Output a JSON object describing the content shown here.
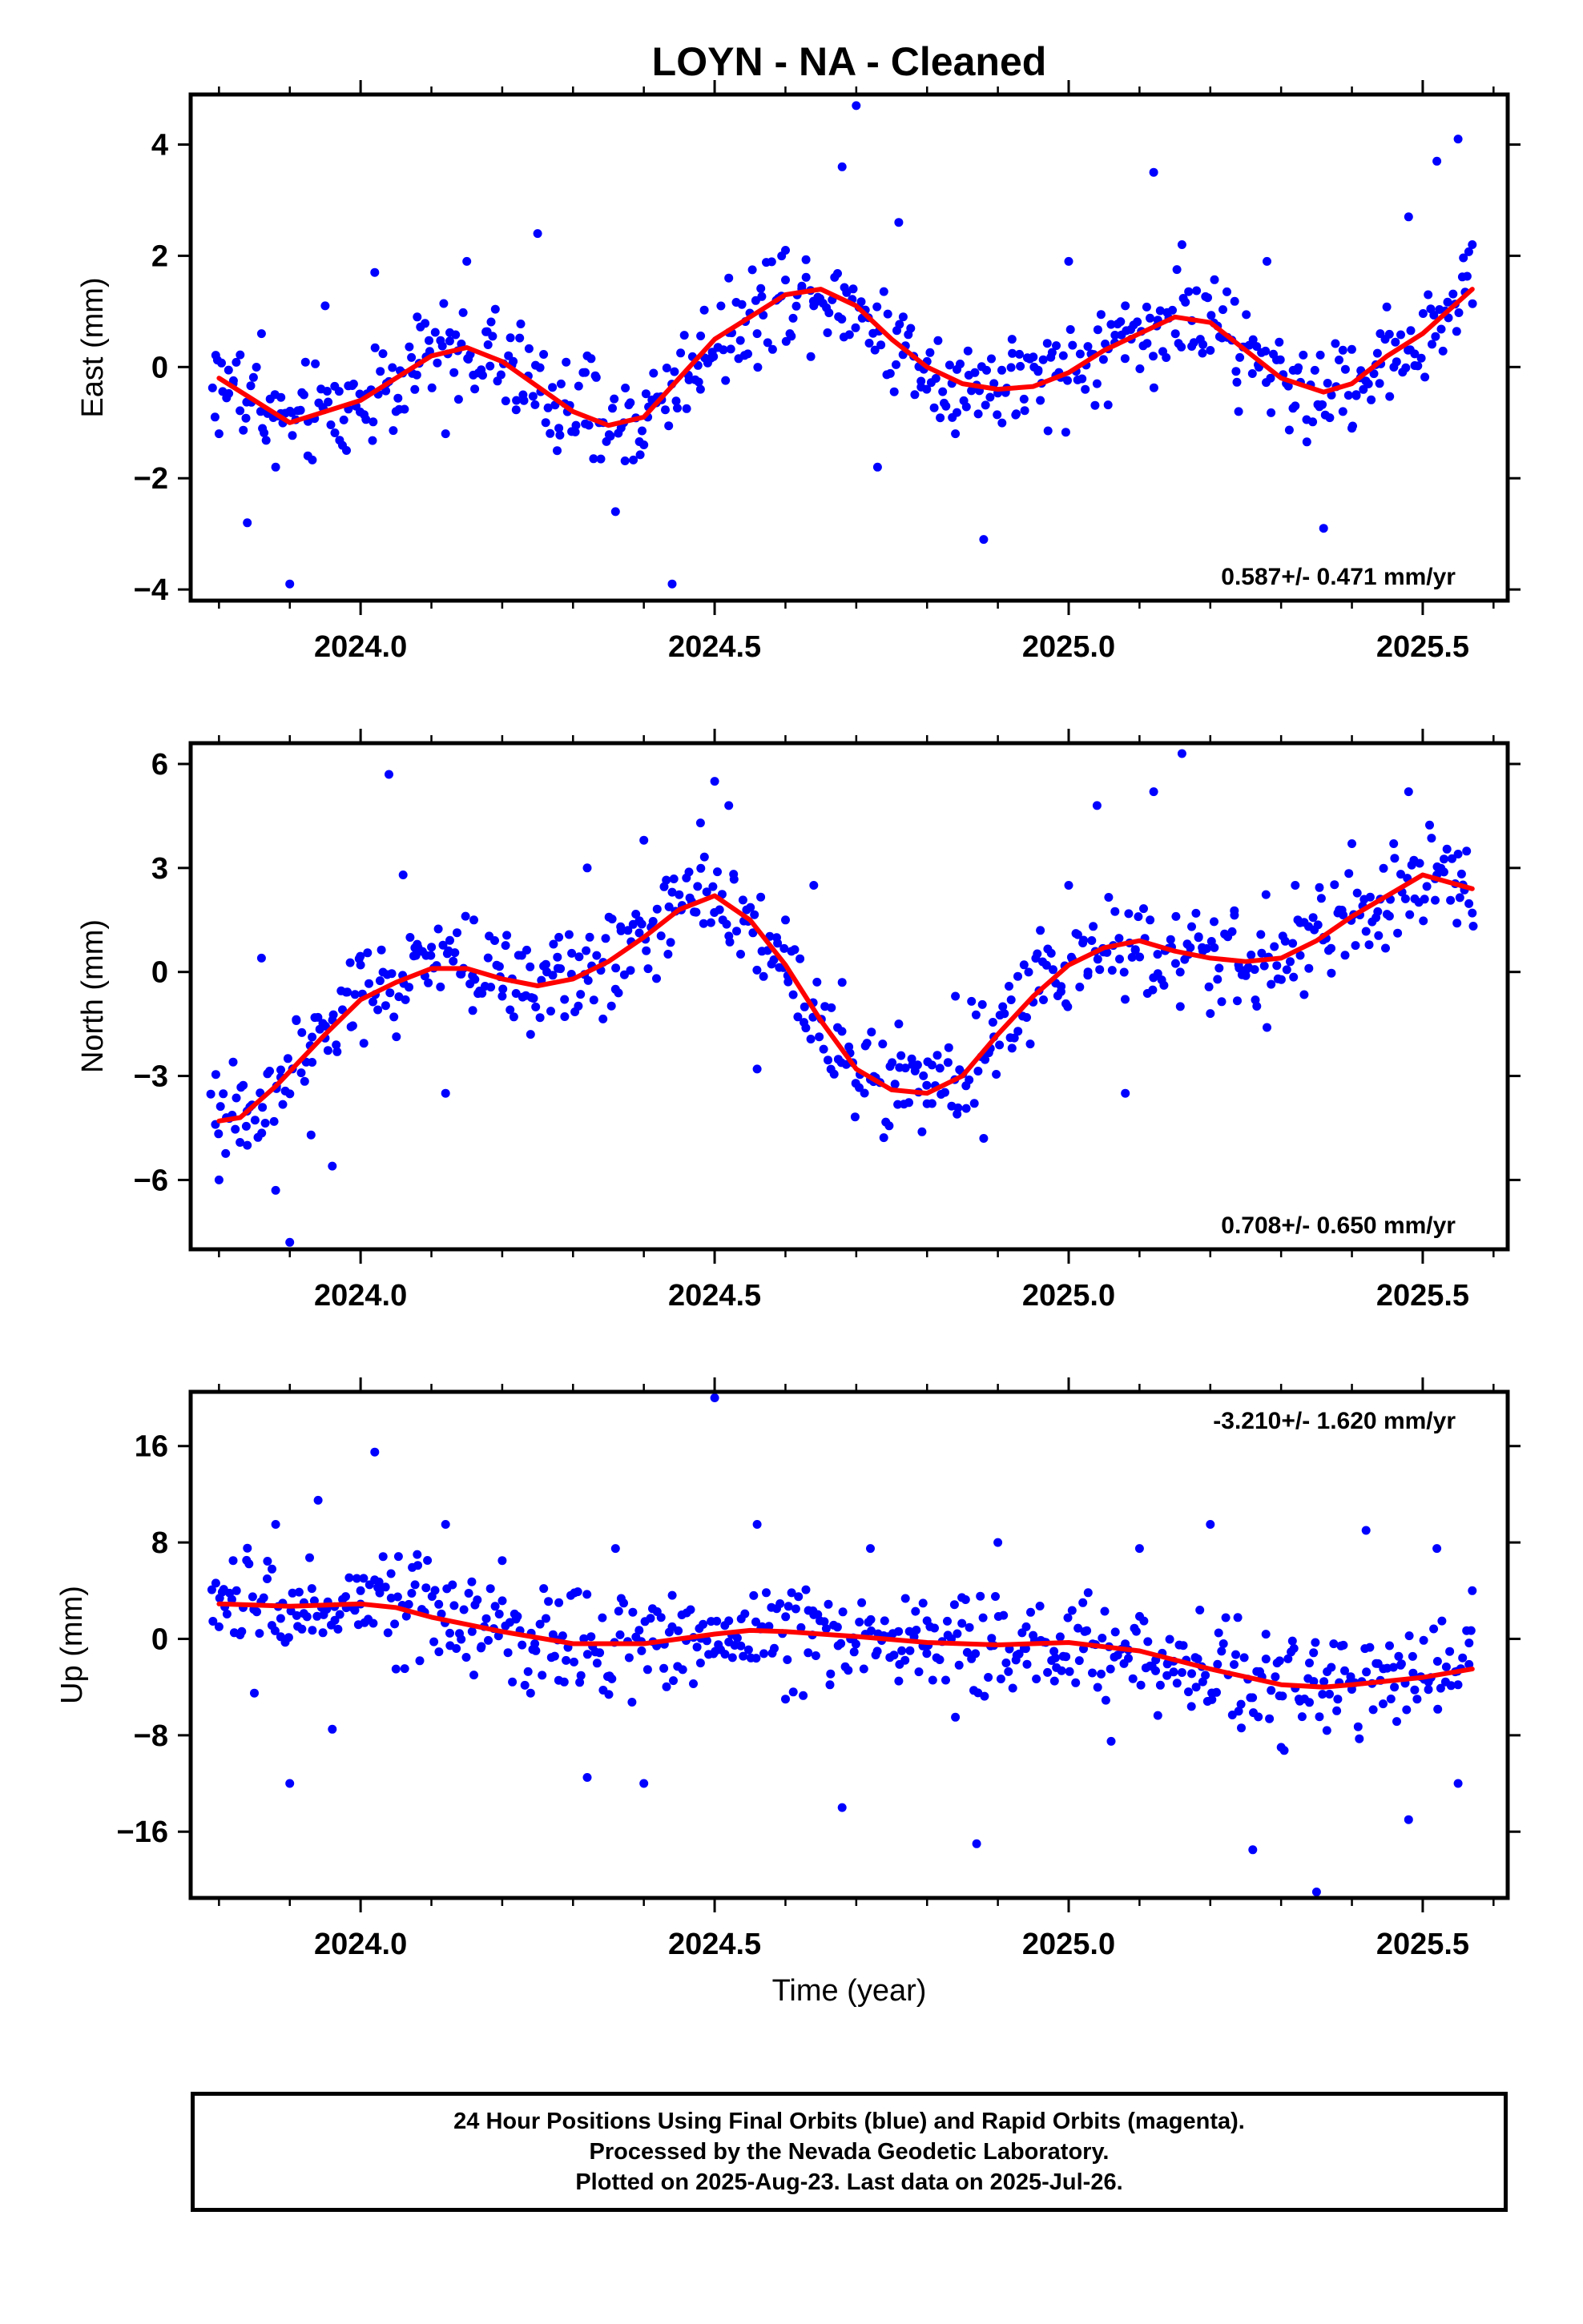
{
  "title": "LOYN  - NA - Cleaned",
  "colors": {
    "points": "#0000ff",
    "fit": "#ff0000",
    "frame": "#000000"
  },
  "caption": {
    "line1": "24 Hour Positions Using Final Orbits (blue) and Rapid Orbits (magenta).",
    "line2": "Processed by the Nevada Geodetic Laboratory.",
    "line3": "Plotted on 2025-Aug-23. Last data on 2025-Jul-26."
  },
  "chart_data": [
    {
      "type": "scatter",
      "ylabel": "East (mm)",
      "xlabel": "",
      "xlim": [
        2023.76,
        2025.62
      ],
      "ylim": [
        -4.2,
        4.9
      ],
      "xticks": [
        2024.0,
        2024.5,
        2025.0,
        2025.5
      ],
      "xtick_labels": [
        "2024.0",
        "2024.5",
        "2025.0",
        "2025.5"
      ],
      "yticks": [
        -4,
        -2,
        0,
        2,
        4
      ],
      "ytick_labels": [
        "−4",
        "−2",
        "0",
        "2",
        "4"
      ],
      "rate_label": "0.587+/- 0.471 mm/yr",
      "rate_position": "bottom-right",
      "series": [
        {
          "kind": "points",
          "color": "#0000ff",
          "x": [
            2023.8,
            2023.82,
            2023.84,
            2023.86,
            2023.88,
            2023.9,
            2023.92,
            2023.95,
            2023.98,
            2024.02,
            2024.05,
            2024.08,
            2024.12,
            2024.15,
            2024.18,
            2024.22,
            2024.25,
            2024.28,
            2024.32,
            2024.36,
            2024.4,
            2024.44,
            2024.48,
            2024.52,
            2024.56,
            2024.6,
            2024.64,
            2024.68,
            2024.7,
            2024.73,
            2024.76,
            2024.8,
            2024.84,
            2024.88,
            2024.92,
            2024.96,
            2025.0,
            2025.04,
            2025.08,
            2025.12,
            2025.16,
            2025.2,
            2025.24,
            2025.28,
            2025.32,
            2025.36,
            2025.4,
            2025.44,
            2025.48,
            2025.52,
            2025.55,
            2025.57
          ],
          "y": [
            -1.2,
            -0.3,
            -2.8,
            0.6,
            -1.8,
            -3.9,
            -0.5,
            1.1,
            -1.5,
            1.7,
            -0.8,
            0.9,
            -1.2,
            1.9,
            0.4,
            -0.6,
            2.4,
            -1.1,
            0.2,
            -2.6,
            -1.4,
            -3.9,
            -0.4,
            1.6,
            0.6,
            2.1,
            1.1,
            3.6,
            4.7,
            -1.8,
            2.6,
            0.1,
            -1.2,
            -3.1,
            0.5,
            -0.6,
            1.9,
            -0.3,
            1.1,
            3.5,
            2.2,
            0.3,
            -0.8,
            1.9,
            -0.7,
            -2.9,
            -1.1,
            0.6,
            2.7,
            3.7,
            4.1,
            2.2
          ]
        },
        {
          "kind": "fit",
          "color": "#ff0000",
          "x": [
            2023.8,
            2023.9,
            2024.0,
            2024.1,
            2024.15,
            2024.2,
            2024.3,
            2024.35,
            2024.4,
            2024.45,
            2024.5,
            2024.55,
            2024.6,
            2024.65,
            2024.7,
            2024.75,
            2024.8,
            2024.85,
            2024.9,
            2024.95,
            2025.0,
            2025.05,
            2025.1,
            2025.15,
            2025.2,
            2025.25,
            2025.3,
            2025.36,
            2025.4,
            2025.45,
            2025.5,
            2025.57
          ],
          "y": [
            -0.2,
            -1.0,
            -0.6,
            0.2,
            0.35,
            0.1,
            -0.8,
            -1.05,
            -0.9,
            -0.2,
            0.5,
            0.9,
            1.3,
            1.4,
            1.1,
            0.5,
            0.0,
            -0.3,
            -0.4,
            -0.35,
            -0.1,
            0.3,
            0.6,
            0.9,
            0.8,
            0.3,
            -0.2,
            -0.45,
            -0.3,
            0.2,
            0.6,
            1.4
          ]
        }
      ]
    },
    {
      "type": "scatter",
      "ylabel": "North (mm)",
      "xlabel": "",
      "xlim": [
        2023.76,
        2025.62
      ],
      "ylim": [
        -8.0,
        6.6
      ],
      "xticks": [
        2024.0,
        2024.5,
        2025.0,
        2025.5
      ],
      "xtick_labels": [
        "2024.0",
        "2024.5",
        "2025.0",
        "2025.5"
      ],
      "yticks": [
        -6,
        -3,
        0,
        3,
        6
      ],
      "ytick_labels": [
        "−6",
        "−3",
        "0",
        "3",
        "6"
      ],
      "rate_label": "0.708+/- 0.650 mm/yr",
      "rate_position": "bottom-right",
      "series": [
        {
          "kind": "points",
          "color": "#0000ff",
          "x": [
            2023.8,
            2023.82,
            2023.84,
            2023.86,
            2023.88,
            2023.9,
            2023.93,
            2023.96,
            2024.0,
            2024.04,
            2024.06,
            2024.08,
            2024.12,
            2024.16,
            2024.2,
            2024.24,
            2024.28,
            2024.32,
            2024.36,
            2024.4,
            2024.44,
            2024.48,
            2024.5,
            2024.52,
            2024.56,
            2024.6,
            2024.64,
            2024.68,
            2024.72,
            2024.76,
            2024.8,
            2024.84,
            2024.88,
            2024.92,
            2024.96,
            2025.0,
            2025.04,
            2025.08,
            2025.12,
            2025.16,
            2025.2,
            2025.24,
            2025.28,
            2025.32,
            2025.36,
            2025.4,
            2025.44,
            2025.48,
            2025.52,
            2025.55,
            2025.57
          ],
          "y": [
            -6.0,
            -2.6,
            -5.0,
            0.4,
            -6.3,
            -7.8,
            -4.7,
            -5.6,
            0.2,
            5.7,
            2.8,
            0.8,
            -3.5,
            1.5,
            -0.7,
            -1.8,
            1.0,
            3.0,
            -0.5,
            3.8,
            2.3,
            4.3,
            5.5,
            4.8,
            -2.8,
            1.5,
            2.5,
            -0.3,
            -3.1,
            -1.5,
            -3.8,
            -0.7,
            -4.8,
            -2.2,
            1.2,
            2.5,
            4.8,
            -3.5,
            5.2,
            6.3,
            -1.2,
            0.2,
            -1.6,
            2.5,
            1.0,
            3.7,
            2.1,
            5.2,
            2.8,
            3.4,
            1.7
          ]
        },
        {
          "kind": "fit",
          "color": "#ff0000",
          "x": [
            2023.8,
            2023.83,
            2023.88,
            2023.95,
            2024.0,
            2024.05,
            2024.1,
            2024.15,
            2024.2,
            2024.25,
            2024.3,
            2024.35,
            2024.4,
            2024.45,
            2024.5,
            2024.55,
            2024.6,
            2024.65,
            2024.7,
            2024.75,
            2024.8,
            2024.85,
            2024.9,
            2024.95,
            2025.0,
            2025.05,
            2025.1,
            2025.15,
            2025.2,
            2025.25,
            2025.3,
            2025.35,
            2025.4,
            2025.45,
            2025.5,
            2025.57
          ],
          "y": [
            -4.3,
            -4.2,
            -3.3,
            -1.8,
            -0.8,
            -0.3,
            0.1,
            0.1,
            -0.2,
            -0.4,
            -0.2,
            0.3,
            1.0,
            1.8,
            2.2,
            1.5,
            0.2,
            -1.4,
            -2.8,
            -3.4,
            -3.5,
            -3.0,
            -1.8,
            -0.7,
            0.2,
            0.7,
            0.9,
            0.6,
            0.4,
            0.3,
            0.4,
            0.9,
            1.6,
            2.2,
            2.8,
            2.4
          ]
        }
      ]
    },
    {
      "type": "scatter",
      "ylabel": "Up (mm)",
      "xlabel": "Time (year)",
      "xlim": [
        2023.76,
        2025.62
      ],
      "ylim": [
        -21.5,
        20.5
      ],
      "xticks": [
        2024.0,
        2024.5,
        2025.0,
        2025.5
      ],
      "xtick_labels": [
        "2024.0",
        "2024.5",
        "2025.0",
        "2025.5"
      ],
      "yticks": [
        -16,
        -8,
        0,
        8,
        16
      ],
      "ytick_labels": [
        "−16",
        "−8",
        "0",
        "8",
        "16"
      ],
      "rate_label": "-3.210+/- 1.620 mm/yr",
      "rate_position": "top-right",
      "series": [
        {
          "kind": "points",
          "color": "#0000ff",
          "x": [
            2023.8,
            2023.82,
            2023.85,
            2023.88,
            2023.9,
            2023.92,
            2023.94,
            2023.96,
            2024.0,
            2024.02,
            2024.05,
            2024.08,
            2024.12,
            2024.16,
            2024.2,
            2024.24,
            2024.28,
            2024.32,
            2024.36,
            2024.4,
            2024.44,
            2024.48,
            2024.5,
            2024.52,
            2024.56,
            2024.6,
            2024.64,
            2024.68,
            2024.72,
            2024.76,
            2024.8,
            2024.84,
            2024.87,
            2024.9,
            2024.94,
            2024.98,
            2025.02,
            2025.06,
            2025.1,
            2025.14,
            2025.18,
            2025.2,
            2025.24,
            2025.26,
            2025.3,
            2025.34,
            2025.35,
            2025.38,
            2025.42,
            2025.46,
            2025.48,
            2025.52,
            2025.55,
            2025.57
          ],
          "y": [
            1.0,
            6.5,
            -4.5,
            9.5,
            -12.0,
            3.0,
            11.5,
            -7.5,
            4.0,
            15.5,
            -2.5,
            7.0,
            9.5,
            -3.0,
            6.5,
            -4.5,
            3.0,
            -11.5,
            7.5,
            -12.0,
            1.0,
            -2.0,
            20.0,
            1.5,
            9.5,
            -5.0,
            2.0,
            -14.0,
            7.5,
            -3.5,
            1.5,
            -6.5,
            -17.0,
            8.0,
            1.0,
            -3.5,
            3.0,
            -8.5,
            7.5,
            -2.0,
            -4.0,
            9.5,
            -6.0,
            -17.5,
            -9.0,
            -2.0,
            -21.0,
            -5.0,
            9.0,
            -4.0,
            -15.0,
            7.5,
            -12.0,
            4.0
          ]
        },
        {
          "kind": "fit",
          "color": "#ff0000",
          "x": [
            2023.8,
            2023.9,
            2024.0,
            2024.05,
            2024.1,
            2024.2,
            2024.3,
            2024.4,
            2024.5,
            2024.55,
            2024.6,
            2024.7,
            2024.8,
            2024.9,
            2025.0,
            2025.1,
            2025.2,
            2025.3,
            2025.36,
            2025.4,
            2025.5,
            2025.57
          ],
          "y": [
            2.9,
            2.7,
            2.9,
            2.6,
            1.8,
            0.6,
            -0.4,
            -0.4,
            0.4,
            0.7,
            0.6,
            0.2,
            -0.3,
            -0.5,
            -0.3,
            -1.0,
            -2.5,
            -3.8,
            -4.0,
            -3.8,
            -3.2,
            -2.5
          ]
        }
      ]
    }
  ]
}
